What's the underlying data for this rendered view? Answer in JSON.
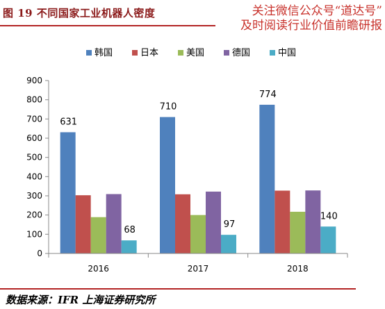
{
  "figure_title": "图 19 不同国家工业机器人密度",
  "watermark": {
    "line1": "关注微信公众号“道达号”",
    "line2": "及时阅读行业价值前瞻研报"
  },
  "source": "数据来源：IFR 上海证券研究所",
  "chart_data": {
    "type": "bar",
    "categories": [
      "2016",
      "2017",
      "2018"
    ],
    "series": [
      {
        "name": "韩国",
        "color": "#4f81bd",
        "values": [
          631,
          710,
          774
        ]
      },
      {
        "name": "日本",
        "color": "#c0504d",
        "values": [
          303,
          308,
          327
        ]
      },
      {
        "name": "美国",
        "color": "#9bbb59",
        "values": [
          189,
          200,
          217
        ]
      },
      {
        "name": "德国",
        "color": "#8064a2",
        "values": [
          309,
          322,
          328
        ]
      },
      {
        "name": "中国",
        "color": "#4bacc6",
        "values": [
          68,
          97,
          140
        ]
      }
    ],
    "data_labels": {
      "韩国": [
        "631",
        "710",
        "774"
      ],
      "中国": [
        "68",
        "97",
        "140"
      ]
    },
    "y_ticks": [
      "0",
      "100",
      "200",
      "300",
      "400",
      "500",
      "600",
      "700",
      "800",
      "900"
    ],
    "ylim": [
      0,
      900
    ],
    "legend_position": "top",
    "grid": false
  }
}
